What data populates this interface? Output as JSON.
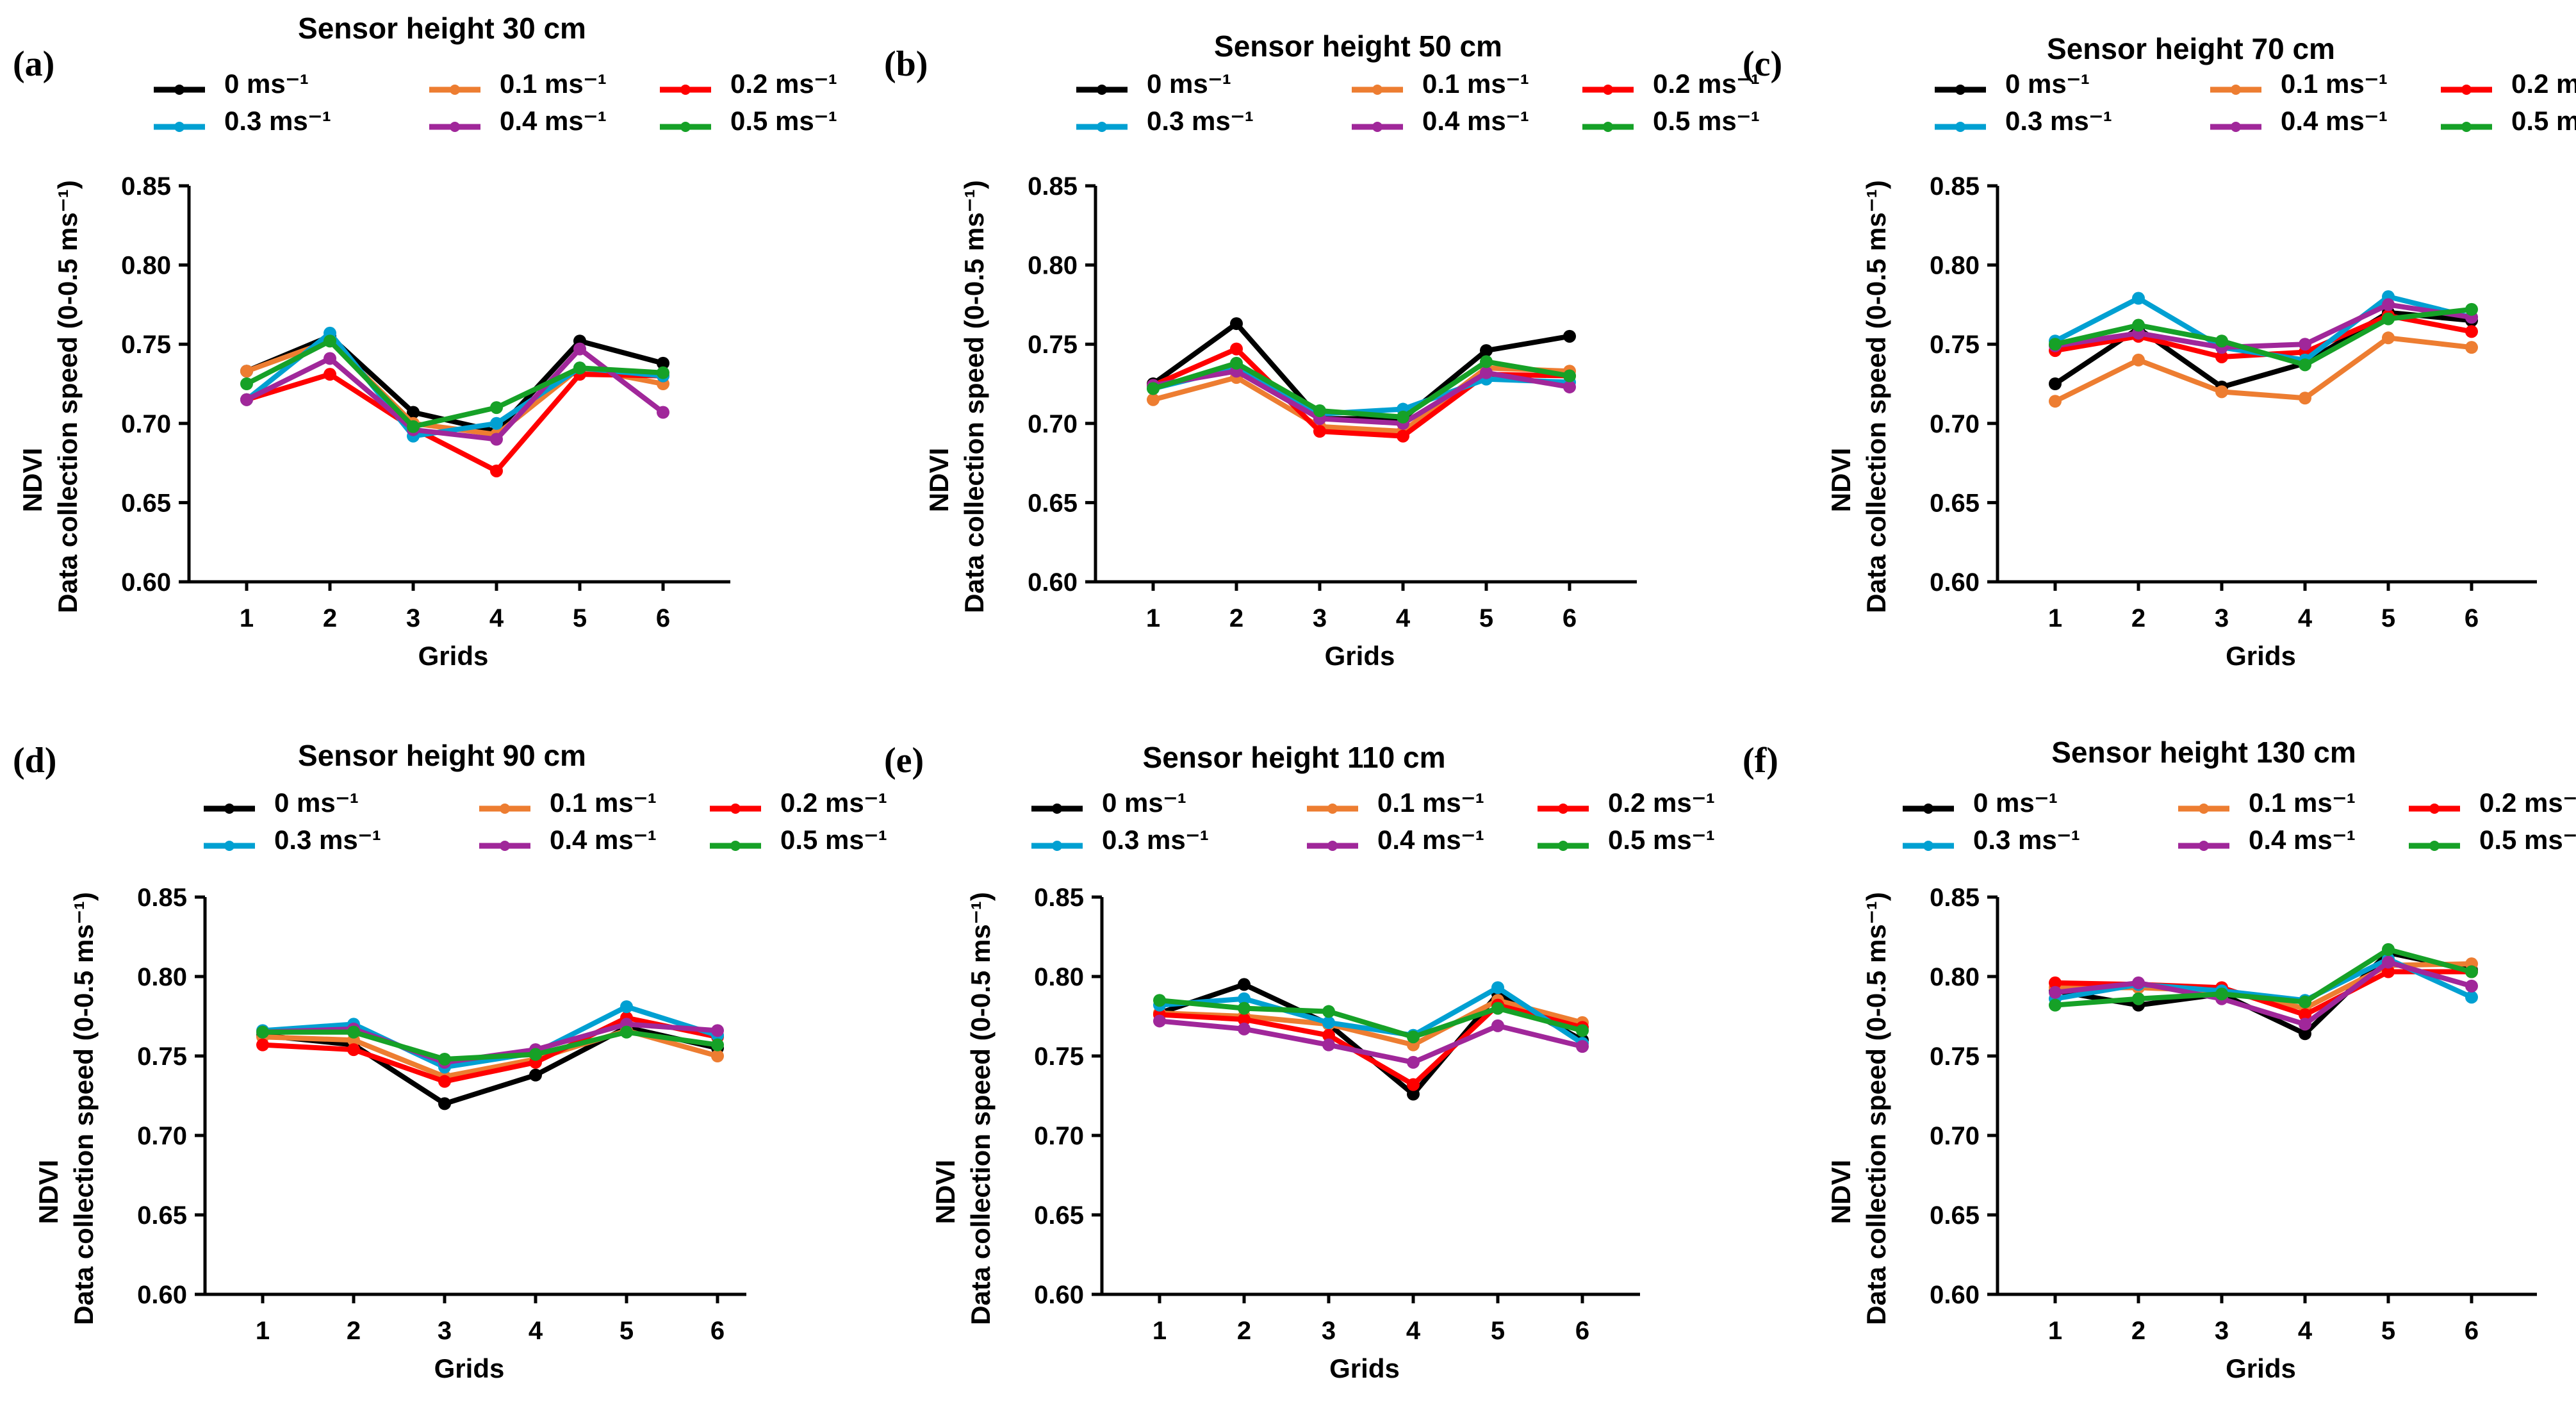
{
  "chart_data": {
    "type": "line",
    "categories": [
      "1",
      "2",
      "3",
      "4",
      "5",
      "6"
    ],
    "xlabel": "Grids",
    "ylabel_line1": "NDVI",
    "ylabel_line2": "Data collection speed (0-0.5 ms⁻¹)",
    "ylim": [
      0.6,
      0.85
    ],
    "yticks": [
      "0.60",
      "0.65",
      "0.70",
      "0.75",
      "0.80",
      "0.85"
    ],
    "legend": [
      {
        "name": "0 ms⁻¹",
        "color": "#000000"
      },
      {
        "name": "0.1 ms⁻¹",
        "color": "#ED7D31"
      },
      {
        "name": "0.2 ms⁻¹",
        "color": "#FF0000"
      },
      {
        "name": "0.3 ms⁻¹",
        "color": "#00A0D2"
      },
      {
        "name": "0.4 ms⁻¹",
        "color": "#A0279A"
      },
      {
        "name": "0.5 ms⁻¹",
        "color": "#16A127"
      }
    ],
    "panels": [
      {
        "letter": "(a)",
        "title": "Sensor height 30 cm",
        "series": [
          [
            0.733,
            0.755,
            0.707,
            0.695,
            0.752,
            0.738
          ],
          [
            0.733,
            0.752,
            0.7,
            0.693,
            0.735,
            0.725
          ],
          [
            0.715,
            0.731,
            0.697,
            0.67,
            0.731,
            0.73
          ],
          [
            0.715,
            0.757,
            0.692,
            0.7,
            0.735,
            0.73
          ],
          [
            0.715,
            0.741,
            0.696,
            0.69,
            0.747,
            0.707
          ],
          [
            0.725,
            0.752,
            0.698,
            0.71,
            0.735,
            0.732
          ]
        ]
      },
      {
        "letter": "(b)",
        "title": "Sensor height 50 cm",
        "series": [
          [
            0.725,
            0.763,
            0.703,
            0.703,
            0.746,
            0.755
          ],
          [
            0.715,
            0.729,
            0.698,
            0.695,
            0.735,
            0.733
          ],
          [
            0.724,
            0.747,
            0.695,
            0.692,
            0.731,
            0.73
          ],
          [
            0.722,
            0.735,
            0.706,
            0.709,
            0.728,
            0.726
          ],
          [
            0.724,
            0.733,
            0.703,
            0.7,
            0.732,
            0.723
          ],
          [
            0.722,
            0.738,
            0.708,
            0.704,
            0.739,
            0.73
          ]
        ]
      },
      {
        "letter": "(c)",
        "title": "Sensor height 70 cm",
        "series": [
          [
            0.725,
            0.76,
            0.723,
            0.738,
            0.77,
            0.765
          ],
          [
            0.714,
            0.74,
            0.72,
            0.716,
            0.754,
            0.748
          ],
          [
            0.746,
            0.755,
            0.742,
            0.745,
            0.768,
            0.758
          ],
          [
            0.752,
            0.779,
            0.748,
            0.74,
            0.78,
            0.767
          ],
          [
            0.749,
            0.757,
            0.748,
            0.75,
            0.775,
            0.767
          ],
          [
            0.75,
            0.762,
            0.752,
            0.737,
            0.766,
            0.772
          ]
        ]
      },
      {
        "letter": "(d)",
        "title": "Sensor height 90 cm",
        "series": [
          [
            0.763,
            0.757,
            0.72,
            0.738,
            0.768,
            0.755
          ],
          [
            0.762,
            0.76,
            0.737,
            0.748,
            0.766,
            0.75
          ],
          [
            0.757,
            0.754,
            0.734,
            0.746,
            0.774,
            0.762
          ],
          [
            0.766,
            0.77,
            0.743,
            0.752,
            0.781,
            0.763
          ],
          [
            0.765,
            0.767,
            0.746,
            0.754,
            0.77,
            0.766
          ],
          [
            0.765,
            0.765,
            0.748,
            0.751,
            0.765,
            0.757
          ]
        ]
      },
      {
        "letter": "(e)",
        "title": "Sensor height 110 cm",
        "series": [
          [
            0.777,
            0.795,
            0.77,
            0.726,
            0.789,
            0.76
          ],
          [
            0.777,
            0.775,
            0.77,
            0.757,
            0.785,
            0.771
          ],
          [
            0.776,
            0.773,
            0.763,
            0.732,
            0.782,
            0.768
          ],
          [
            0.782,
            0.786,
            0.771,
            0.763,
            0.793,
            0.758
          ],
          [
            0.772,
            0.767,
            0.757,
            0.746,
            0.769,
            0.756
          ],
          [
            0.785,
            0.78,
            0.778,
            0.762,
            0.78,
            0.766
          ]
        ]
      },
      {
        "letter": "(f)",
        "title": "Sensor height 130 cm",
        "series": [
          [
            0.791,
            0.782,
            0.789,
            0.764,
            0.815,
            0.804
          ],
          [
            0.793,
            0.793,
            0.791,
            0.78,
            0.807,
            0.808
          ],
          [
            0.796,
            0.795,
            0.793,
            0.776,
            0.803,
            0.803
          ],
          [
            0.786,
            0.795,
            0.791,
            0.785,
            0.811,
            0.787
          ],
          [
            0.79,
            0.796,
            0.786,
            0.77,
            0.809,
            0.794
          ],
          [
            0.782,
            0.786,
            0.789,
            0.784,
            0.817,
            0.803
          ]
        ]
      }
    ]
  }
}
